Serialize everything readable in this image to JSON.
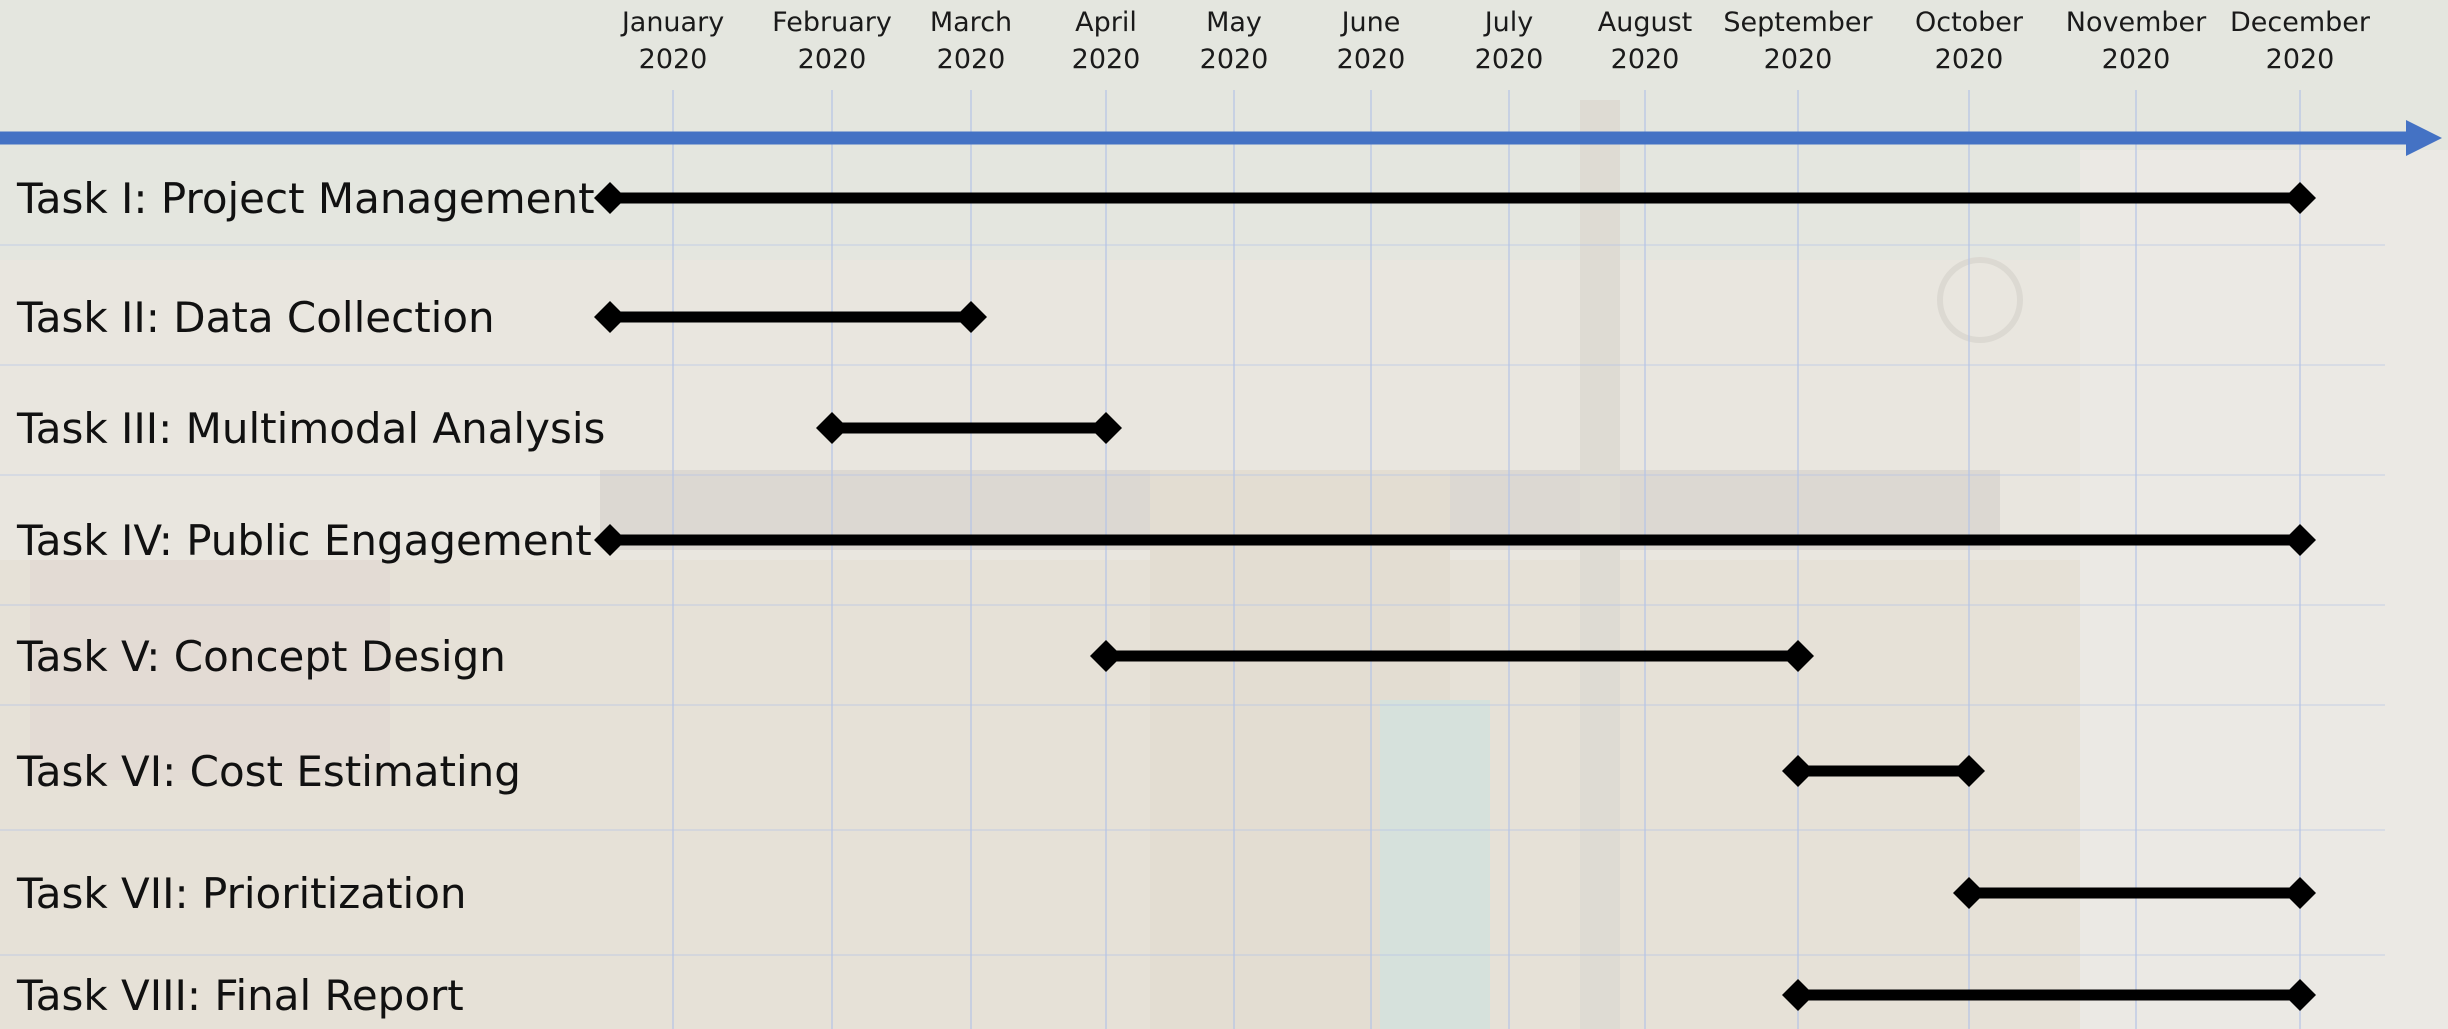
{
  "chart_data": {
    "type": "gantt",
    "months": [
      {
        "name": "January",
        "year": "2020"
      },
      {
        "name": "February",
        "year": "2020"
      },
      {
        "name": "March",
        "year": "2020"
      },
      {
        "name": "April",
        "year": "2020"
      },
      {
        "name": "May",
        "year": "2020"
      },
      {
        "name": "June",
        "year": "2020"
      },
      {
        "name": "July",
        "year": "2020"
      },
      {
        "name": "August",
        "year": "2020"
      },
      {
        "name": "September",
        "year": "2020"
      },
      {
        "name": "October",
        "year": "2020"
      },
      {
        "name": "November",
        "year": "2020"
      },
      {
        "name": "December",
        "year": "2020"
      }
    ],
    "tasks": [
      {
        "name": "Task I: Project Management",
        "start": "2020-01-01",
        "end": "2020-12-01"
      },
      {
        "name": "Task II: Data Collection",
        "start": "2020-01-01",
        "end": "2020-03-01"
      },
      {
        "name": "Task III: Multimodal Analysis",
        "start": "2020-02-01",
        "end": "2020-04-01"
      },
      {
        "name": "Task IV: Public Engagement",
        "start": "2020-01-01",
        "end": "2020-12-01"
      },
      {
        "name": "Task V: Concept Design",
        "start": "2020-04-01",
        "end": "2020-09-01"
      },
      {
        "name": "Task VI: Cost Estimating",
        "start": "2020-09-01",
        "end": "2020-10-01"
      },
      {
        "name": "Task VII: Prioritization",
        "start": "2020-10-01",
        "end": "2020-12-01"
      },
      {
        "name": "Task VIII: Final Report",
        "start": "2020-09-01",
        "end": "2020-12-01"
      }
    ],
    "colors": {
      "timeline_arrow": "#4472c4",
      "task_bar": "#000000",
      "grid": "#b4c3e6"
    },
    "grid": true
  }
}
